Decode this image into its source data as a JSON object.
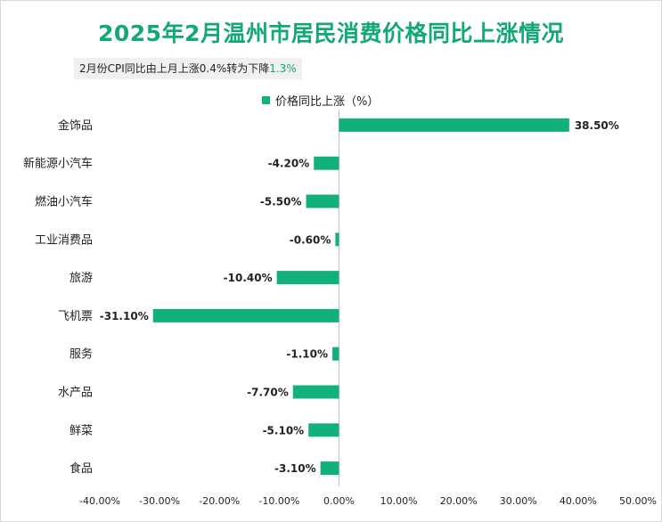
{
  "title": "2025年2月温州市居民消费价格同比上涨情况",
  "subtitle": {
    "prefix": "2月份CPI同比由上月上涨0.4%转为下降",
    "highlight": "1.3%"
  },
  "colors": {
    "bar": "#12b07c",
    "title": "#12a877",
    "text": "#222222",
    "axis": "#bfbfbf"
  },
  "chart_data": {
    "type": "bar",
    "orientation": "horizontal",
    "legend_position": "top",
    "grid": false,
    "categories": [
      "金饰品",
      "新能源小汽车",
      "燃油小汽车",
      "工业消费品",
      "旅游",
      "飞机票",
      "服务",
      "水产品",
      "鲜菜",
      "食品"
    ],
    "series": [
      {
        "name": "价格同比上涨（%）",
        "values": [
          38.5,
          -4.2,
          -5.5,
          -0.6,
          -10.4,
          -31.1,
          -1.1,
          -7.7,
          -5.1,
          -3.1
        ]
      }
    ],
    "value_labels": [
      "38.50%",
      "-4.20%",
      "-5.50%",
      "-0.60%",
      "-10.40%",
      "-31.10%",
      "-1.10%",
      "-7.70%",
      "-5.10%",
      "-3.10%"
    ],
    "xlim": [
      -40,
      50
    ],
    "xticks": [
      -40,
      -30,
      -20,
      -10,
      0,
      10,
      20,
      30,
      40,
      50
    ],
    "xtick_labels": [
      "-40.00%",
      "-30.00%",
      "-20.00%",
      "-10.00%",
      "0.00%",
      "10.00%",
      "20.00%",
      "30.00%",
      "40.00%",
      "50.00%"
    ]
  }
}
